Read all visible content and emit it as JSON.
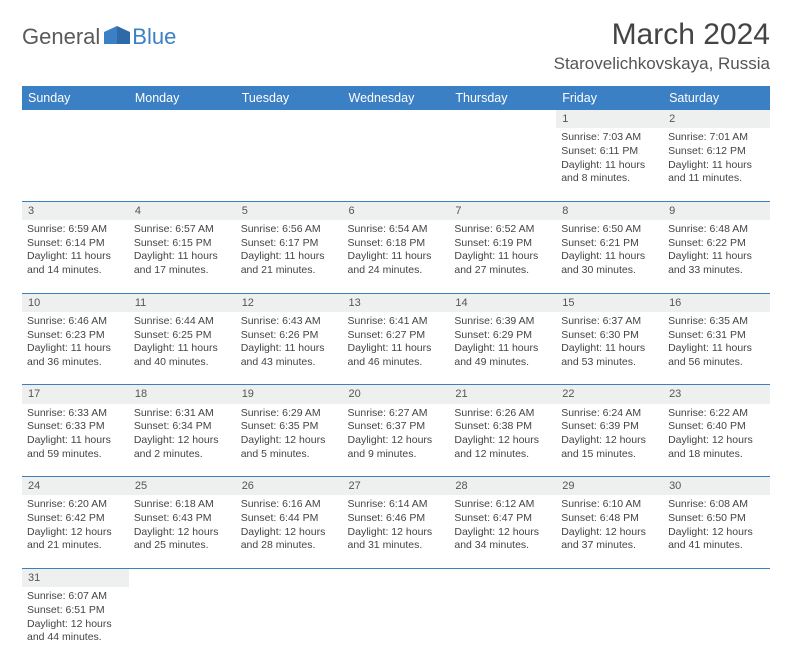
{
  "logo": {
    "part1": "General",
    "part2": "Blue"
  },
  "title": "March 2024",
  "location": "Starovelichkovskaya, Russia",
  "colors": {
    "header_bg": "#3b7fc4",
    "header_text": "#ffffff",
    "daynum_bg": "#eef0f0",
    "text": "#444444",
    "logo_gray": "#5a5a5a",
    "logo_blue": "#3b7fc4",
    "rule": "#3b7fc4"
  },
  "day_headers": [
    "Sunday",
    "Monday",
    "Tuesday",
    "Wednesday",
    "Thursday",
    "Friday",
    "Saturday"
  ],
  "weeks": [
    {
      "nums": [
        "",
        "",
        "",
        "",
        "",
        "1",
        "2"
      ],
      "cells": [
        null,
        null,
        null,
        null,
        null,
        {
          "sunrise": "7:03 AM",
          "sunset": "6:11 PM",
          "daylight": "11 hours and 8 minutes."
        },
        {
          "sunrise": "7:01 AM",
          "sunset": "6:12 PM",
          "daylight": "11 hours and 11 minutes."
        }
      ]
    },
    {
      "nums": [
        "3",
        "4",
        "5",
        "6",
        "7",
        "8",
        "9"
      ],
      "cells": [
        {
          "sunrise": "6:59 AM",
          "sunset": "6:14 PM",
          "daylight": "11 hours and 14 minutes."
        },
        {
          "sunrise": "6:57 AM",
          "sunset": "6:15 PM",
          "daylight": "11 hours and 17 minutes."
        },
        {
          "sunrise": "6:56 AM",
          "sunset": "6:17 PM",
          "daylight": "11 hours and 21 minutes."
        },
        {
          "sunrise": "6:54 AM",
          "sunset": "6:18 PM",
          "daylight": "11 hours and 24 minutes."
        },
        {
          "sunrise": "6:52 AM",
          "sunset": "6:19 PM",
          "daylight": "11 hours and 27 minutes."
        },
        {
          "sunrise": "6:50 AM",
          "sunset": "6:21 PM",
          "daylight": "11 hours and 30 minutes."
        },
        {
          "sunrise": "6:48 AM",
          "sunset": "6:22 PM",
          "daylight": "11 hours and 33 minutes."
        }
      ]
    },
    {
      "nums": [
        "10",
        "11",
        "12",
        "13",
        "14",
        "15",
        "16"
      ],
      "cells": [
        {
          "sunrise": "6:46 AM",
          "sunset": "6:23 PM",
          "daylight": "11 hours and 36 minutes."
        },
        {
          "sunrise": "6:44 AM",
          "sunset": "6:25 PM",
          "daylight": "11 hours and 40 minutes."
        },
        {
          "sunrise": "6:43 AM",
          "sunset": "6:26 PM",
          "daylight": "11 hours and 43 minutes."
        },
        {
          "sunrise": "6:41 AM",
          "sunset": "6:27 PM",
          "daylight": "11 hours and 46 minutes."
        },
        {
          "sunrise": "6:39 AM",
          "sunset": "6:29 PM",
          "daylight": "11 hours and 49 minutes."
        },
        {
          "sunrise": "6:37 AM",
          "sunset": "6:30 PM",
          "daylight": "11 hours and 53 minutes."
        },
        {
          "sunrise": "6:35 AM",
          "sunset": "6:31 PM",
          "daylight": "11 hours and 56 minutes."
        }
      ]
    },
    {
      "nums": [
        "17",
        "18",
        "19",
        "20",
        "21",
        "22",
        "23"
      ],
      "cells": [
        {
          "sunrise": "6:33 AM",
          "sunset": "6:33 PM",
          "daylight": "11 hours and 59 minutes."
        },
        {
          "sunrise": "6:31 AM",
          "sunset": "6:34 PM",
          "daylight": "12 hours and 2 minutes."
        },
        {
          "sunrise": "6:29 AM",
          "sunset": "6:35 PM",
          "daylight": "12 hours and 5 minutes."
        },
        {
          "sunrise": "6:27 AM",
          "sunset": "6:37 PM",
          "daylight": "12 hours and 9 minutes."
        },
        {
          "sunrise": "6:26 AM",
          "sunset": "6:38 PM",
          "daylight": "12 hours and 12 minutes."
        },
        {
          "sunrise": "6:24 AM",
          "sunset": "6:39 PM",
          "daylight": "12 hours and 15 minutes."
        },
        {
          "sunrise": "6:22 AM",
          "sunset": "6:40 PM",
          "daylight": "12 hours and 18 minutes."
        }
      ]
    },
    {
      "nums": [
        "24",
        "25",
        "26",
        "27",
        "28",
        "29",
        "30"
      ],
      "cells": [
        {
          "sunrise": "6:20 AM",
          "sunset": "6:42 PM",
          "daylight": "12 hours and 21 minutes."
        },
        {
          "sunrise": "6:18 AM",
          "sunset": "6:43 PM",
          "daylight": "12 hours and 25 minutes."
        },
        {
          "sunrise": "6:16 AM",
          "sunset": "6:44 PM",
          "daylight": "12 hours and 28 minutes."
        },
        {
          "sunrise": "6:14 AM",
          "sunset": "6:46 PM",
          "daylight": "12 hours and 31 minutes."
        },
        {
          "sunrise": "6:12 AM",
          "sunset": "6:47 PM",
          "daylight": "12 hours and 34 minutes."
        },
        {
          "sunrise": "6:10 AM",
          "sunset": "6:48 PM",
          "daylight": "12 hours and 37 minutes."
        },
        {
          "sunrise": "6:08 AM",
          "sunset": "6:50 PM",
          "daylight": "12 hours and 41 minutes."
        }
      ]
    },
    {
      "nums": [
        "31",
        "",
        "",
        "",
        "",
        "",
        ""
      ],
      "cells": [
        {
          "sunrise": "6:07 AM",
          "sunset": "6:51 PM",
          "daylight": "12 hours and 44 minutes."
        },
        null,
        null,
        null,
        null,
        null,
        null
      ]
    }
  ],
  "labels": {
    "sunrise": "Sunrise:",
    "sunset": "Sunset:",
    "daylight": "Daylight:"
  }
}
